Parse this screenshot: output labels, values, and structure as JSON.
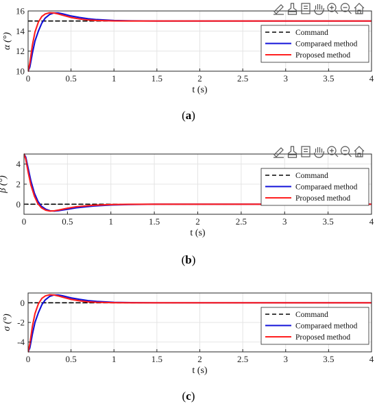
{
  "toolbar": {
    "icons": [
      "edit-icon",
      "brush-icon",
      "data-tips-icon",
      "pan-hand-icon",
      "zoom-in-icon",
      "zoom-out-icon",
      "home-icon"
    ],
    "visible_on_panels": [
      0,
      1
    ]
  },
  "colors": {
    "command": "#000000",
    "compared": "#1010d8",
    "proposed": "#ff1e1e",
    "grid": "#e4e4e4",
    "axis": "#262626"
  },
  "chart_data": [
    {
      "type": "line",
      "panel_label": "(a)",
      "caption_letter": "a",
      "xlabel": "t (s)",
      "ylabel": "α (°)",
      "xlim": [
        0,
        4
      ],
      "ylim": [
        10,
        16
      ],
      "xticks": [
        0,
        0.5,
        1,
        1.5,
        2,
        2.5,
        3,
        3.5,
        4
      ],
      "xtick_labels": [
        "0",
        "0.5",
        "1",
        "1.5",
        "2",
        "2.5",
        "3",
        "3.5",
        "4"
      ],
      "yticks": [
        10,
        12,
        14,
        16
      ],
      "ytick_labels": [
        "10",
        "12",
        "14",
        "16"
      ],
      "grid": true,
      "legend_position": "right",
      "series": [
        {
          "name": "Command",
          "style": "dashed",
          "x": [
            0,
            0.15,
            4
          ],
          "y": [
            15,
            15,
            15
          ]
        },
        {
          "name": "Comparaed method",
          "style": "solid",
          "x": [
            0,
            0.02,
            0.05,
            0.08,
            0.12,
            0.16,
            0.2,
            0.25,
            0.3,
            0.35,
            0.4,
            0.5,
            0.6,
            0.7,
            0.8,
            1.0,
            1.2,
            1.5,
            2.0,
            4.0
          ],
          "y": [
            10,
            10.4,
            11.8,
            13.0,
            14.0,
            14.8,
            15.3,
            15.65,
            15.8,
            15.8,
            15.72,
            15.5,
            15.35,
            15.22,
            15.14,
            15.05,
            15.02,
            15.0,
            15.0,
            15.0
          ]
        },
        {
          "name": "Proposed method",
          "style": "solid",
          "x": [
            0,
            0.02,
            0.05,
            0.08,
            0.12,
            0.16,
            0.2,
            0.25,
            0.3,
            0.35,
            0.4,
            0.5,
            0.6,
            0.7,
            0.8,
            1.0,
            1.2,
            1.5,
            2.0,
            4.0
          ],
          "y": [
            10,
            10.8,
            12.6,
            13.9,
            14.9,
            15.45,
            15.7,
            15.82,
            15.8,
            15.7,
            15.58,
            15.35,
            15.2,
            15.1,
            15.05,
            15.01,
            15.0,
            15.0,
            15.0,
            15.0
          ]
        }
      ]
    },
    {
      "type": "line",
      "panel_label": "(b)",
      "caption_letter": "b",
      "xlabel": "t (s)",
      "ylabel": "β (°)",
      "xlim": [
        0,
        4
      ],
      "ylim": [
        -1,
        5
      ],
      "xticks": [
        0,
        0.5,
        1,
        1.5,
        2,
        2.5,
        3,
        3.5,
        4
      ],
      "xtick_labels": [
        "0",
        "0.5",
        "1",
        "1.5",
        "2",
        "2.5",
        "3",
        "3.5",
        "4"
      ],
      "yticks": [
        0,
        2,
        4
      ],
      "ytick_labels": [
        "0",
        "2",
        "4"
      ],
      "grid": true,
      "legend_position": "right",
      "series": [
        {
          "name": "Command",
          "style": "dashed",
          "x": [
            0,
            4
          ],
          "y": [
            0,
            0
          ]
        },
        {
          "name": "Comparaed method",
          "style": "solid",
          "x": [
            0,
            0.02,
            0.05,
            0.08,
            0.12,
            0.16,
            0.2,
            0.25,
            0.3,
            0.35,
            0.4,
            0.5,
            0.6,
            0.8,
            1.0,
            1.2,
            1.5,
            2.0,
            4.0
          ],
          "y": [
            5,
            4.7,
            3.5,
            2.3,
            1.1,
            0.3,
            -0.2,
            -0.5,
            -0.65,
            -0.68,
            -0.64,
            -0.5,
            -0.36,
            -0.18,
            -0.08,
            -0.03,
            0.0,
            0.0,
            0.0
          ]
        },
        {
          "name": "Proposed method",
          "style": "solid",
          "x": [
            0,
            0.02,
            0.05,
            0.08,
            0.12,
            0.16,
            0.2,
            0.25,
            0.3,
            0.35,
            0.4,
            0.5,
            0.6,
            0.8,
            1.0,
            1.2,
            1.5,
            2.0,
            4.0
          ],
          "y": [
            5,
            4.5,
            3.1,
            1.9,
            0.8,
            0.05,
            -0.35,
            -0.6,
            -0.68,
            -0.65,
            -0.58,
            -0.4,
            -0.25,
            -0.1,
            -0.03,
            -0.01,
            0.0,
            0.0,
            0.0
          ]
        }
      ]
    },
    {
      "type": "line",
      "panel_label": "(c)",
      "caption_letter": "c",
      "xlabel": "t (s)",
      "ylabel": "σ (°)",
      "xlim": [
        0,
        4
      ],
      "ylim": [
        -5,
        1
      ],
      "xticks": [
        0,
        0.5,
        1,
        1.5,
        2,
        2.5,
        3,
        3.5,
        4
      ],
      "xtick_labels": [
        "0",
        "0.5",
        "1",
        "1.5",
        "2",
        "2.5",
        "3",
        "3.5",
        "4"
      ],
      "yticks": [
        -4,
        -2,
        0
      ],
      "ytick_labels": [
        "-4",
        "-2",
        "0"
      ],
      "grid": true,
      "legend_position": "right",
      "series": [
        {
          "name": "Command",
          "style": "dashed",
          "x": [
            0,
            0.15,
            4
          ],
          "y": [
            0,
            0,
            0
          ]
        },
        {
          "name": "Comparaed method",
          "style": "solid",
          "x": [
            0,
            0.02,
            0.05,
            0.08,
            0.12,
            0.16,
            0.2,
            0.25,
            0.3,
            0.35,
            0.4,
            0.5,
            0.6,
            0.7,
            0.8,
            1.0,
            1.2,
            1.5,
            2.0,
            4.0
          ],
          "y": [
            -5,
            -4.6,
            -3.2,
            -2.0,
            -1.0,
            -0.2,
            0.3,
            0.65,
            0.8,
            0.8,
            0.72,
            0.5,
            0.35,
            0.22,
            0.14,
            0.05,
            0.02,
            0.0,
            0.0,
            0.0
          ]
        },
        {
          "name": "Proposed method",
          "style": "solid",
          "x": [
            0,
            0.02,
            0.05,
            0.08,
            0.12,
            0.16,
            0.2,
            0.25,
            0.3,
            0.35,
            0.4,
            0.5,
            0.6,
            0.7,
            0.8,
            1.0,
            1.2,
            1.5,
            2.0,
            4.0
          ],
          "y": [
            -5,
            -4.2,
            -2.4,
            -1.1,
            -0.1,
            0.45,
            0.7,
            0.82,
            0.8,
            0.7,
            0.58,
            0.35,
            0.2,
            0.1,
            0.05,
            0.01,
            0.0,
            0.0,
            0.0,
            0.0
          ]
        }
      ]
    }
  ]
}
